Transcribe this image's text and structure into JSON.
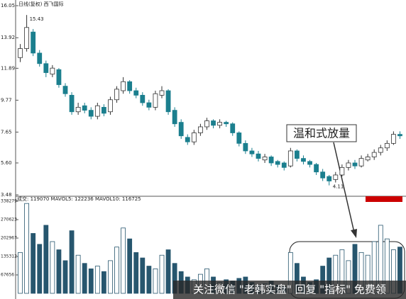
{
  "chart_data": {
    "type": "candlestick",
    "title": "日线(复权) 西飞国际",
    "open": [
      12.6,
      13.2,
      14.3,
      12.9,
      12.2,
      11.5,
      11.8,
      10.7,
      10.1,
      9.0,
      9.4,
      9.1,
      8.7,
      9.3,
      9.0,
      9.8,
      10.4,
      11.0,
      10.4,
      10.1,
      9.6,
      9.3,
      10.1,
      10.4,
      9.1,
      8.3,
      7.3,
      7.0,
      7.6,
      8.0,
      8.4,
      8.1,
      8.3,
      8.2,
      7.6,
      6.9,
      6.4,
      6.2,
      5.8,
      6.0,
      5.7,
      5.6,
      5.4,
      6.4,
      5.9,
      5.7,
      5.5,
      5.0,
      4.7,
      4.5,
      4.8,
      5.3,
      5.6,
      5.4,
      5.8,
      6.0,
      6.3,
      6.6,
      6.9,
      7.5
    ],
    "high": [
      13.5,
      15.43,
      14.5,
      13.1,
      12.4,
      12.1,
      11.9,
      10.9,
      10.3,
      9.6,
      9.6,
      9.3,
      9.6,
      9.5,
      10.0,
      10.7,
      11.3,
      11.1,
      10.6,
      10.3,
      9.8,
      10.4,
      10.7,
      10.5,
      9.3,
      8.5,
      7.5,
      7.8,
      8.2,
      8.6,
      8.5,
      8.5,
      8.4,
      8.3,
      7.7,
      7.1,
      6.6,
      6.4,
      6.2,
      6.1,
      5.8,
      5.7,
      6.6,
      6.5,
      6.1,
      5.8,
      5.6,
      5.2,
      4.8,
      5.0,
      5.5,
      5.8,
      5.8,
      6.1,
      6.2,
      6.5,
      6.8,
      7.1,
      7.7,
      7.7
    ],
    "low": [
      12.3,
      13.0,
      12.7,
      12.0,
      11.3,
      11.3,
      10.6,
      10.0,
      8.8,
      8.8,
      8.9,
      8.5,
      8.5,
      8.7,
      8.8,
      9.6,
      10.2,
      10.2,
      9.9,
      9.4,
      9.1,
      9.1,
      9.9,
      8.8,
      8.0,
      7.2,
      6.8,
      6.8,
      7.4,
      7.8,
      7.9,
      7.9,
      8.0,
      7.4,
      6.7,
      6.2,
      6.0,
      5.7,
      5.6,
      5.4,
      5.3,
      5.1,
      5.3,
      5.7,
      5.5,
      5.3,
      4.8,
      4.4,
      4.11,
      4.3,
      4.7,
      5.1,
      5.2,
      5.3,
      5.7,
      5.8,
      6.1,
      6.4,
      6.8,
      7.2
    ],
    "close": [
      13.2,
      14.6,
      12.9,
      12.2,
      11.6,
      11.9,
      10.8,
      10.2,
      9.0,
      9.3,
      9.1,
      8.7,
      9.4,
      8.9,
      9.8,
      10.5,
      11.0,
      10.4,
      10.1,
      9.6,
      9.3,
      10.2,
      10.4,
      9.0,
      8.2,
      7.4,
      7.0,
      7.6,
      8.0,
      8.4,
      8.1,
      8.3,
      8.2,
      7.6,
      6.9,
      6.4,
      6.2,
      5.9,
      6.0,
      5.6,
      5.5,
      5.3,
      6.4,
      5.9,
      5.7,
      5.5,
      5.0,
      4.6,
      4.4,
      4.8,
      5.3,
      5.6,
      5.4,
      5.9,
      6.0,
      6.3,
      6.6,
      6.9,
      7.5,
      7.4
    ],
    "volume": [
      150000,
      330000,
      220000,
      180000,
      250000,
      190000,
      160000,
      120000,
      230000,
      140000,
      110000,
      90000,
      100000,
      80000,
      120000,
      170000,
      240000,
      200000,
      150000,
      130000,
      100000,
      90000,
      140000,
      160000,
      110000,
      80000,
      60000,
      50000,
      70000,
      90000,
      60000,
      40000,
      50000,
      45000,
      55000,
      60000,
      40000,
      30000,
      35000,
      45000,
      30000,
      25000,
      150000,
      110000,
      60000,
      40000,
      50000,
      100000,
      130000,
      140000,
      160000,
      120000,
      180000,
      150000,
      140000,
      190000,
      250000,
      200000,
      160000,
      170000
    ],
    "ylim": [
      3.48,
      16.05
    ],
    "yticks": [
      16.05,
      13.92,
      11.89,
      9.77,
      {
        "value": 7.65,
        "label": "7.65"
      },
      {
        "value": 5.6,
        "label": "5.60"
      },
      3.48
    ],
    "volume_ylim": [
      0,
      356500
    ],
    "volume_yticks": [
      338279,
      270623,
      202967,
      135312,
      67656
    ],
    "volume_header": "成交: 119070  MAVOL5: 122236  MAVOL10: 116725",
    "high_label": "15.43",
    "low_label": "4.11",
    "annotation": "温和式放量",
    "watermark": "关注微信 \"老韩实盘\" 回复 \"指标\" 免费领",
    "up_color": "#ffffff",
    "down_color": "#1b7f8e",
    "volume_color": "#27566e"
  }
}
